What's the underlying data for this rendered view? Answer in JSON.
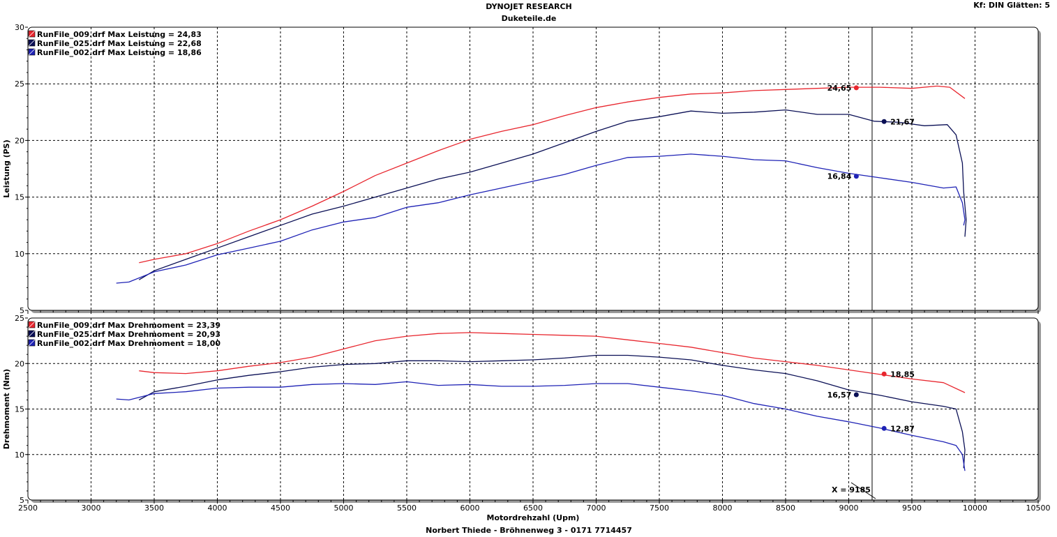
{
  "header": {
    "title": "DYNOJET RESEARCH",
    "subtitle": "Duketeile.de",
    "settings": "Kf: DIN  Glätten: 5"
  },
  "footer": "Norbert Thiede - Bröhnenweg 3 - 0171 7714457",
  "cursor_label": "X = 9185",
  "colors": {
    "run009": "#e8262e",
    "run025": "#0a0f55",
    "run002": "#1e22b5"
  },
  "chart_data": [
    {
      "type": "line",
      "ylabel": "Leistung (PS)",
      "xlabel": "",
      "xlim": [
        2500,
        10500
      ],
      "ylim": [
        5,
        30
      ],
      "x_ticks": [
        2500,
        3000,
        3500,
        4000,
        4500,
        5000,
        5500,
        6000,
        6500,
        7000,
        7500,
        8000,
        8500,
        9000,
        9500,
        10000,
        10500
      ],
      "y_ticks": [
        5,
        10,
        15,
        20,
        25,
        30
      ],
      "cursor_x": 9185,
      "legend": "top-left",
      "series": [
        {
          "name": "RunFile_009.drf Max Leistung = 24,83",
          "color": "#e8262e",
          "marker": {
            "x": 9060,
            "y": 24.65,
            "label": "24,65",
            "side": "left"
          },
          "points": [
            [
              3380,
              9.2
            ],
            [
              3500,
              9.5
            ],
            [
              3750,
              10.0
            ],
            [
              4000,
              10.9
            ],
            [
              4250,
              12.0
            ],
            [
              4500,
              13.0
            ],
            [
              4750,
              14.2
            ],
            [
              5000,
              15.5
            ],
            [
              5250,
              16.9
            ],
            [
              5500,
              18.0
            ],
            [
              5750,
              19.1
            ],
            [
              6000,
              20.1
            ],
            [
              6250,
              20.8
            ],
            [
              6500,
              21.4
            ],
            [
              6750,
              22.2
            ],
            [
              7000,
              22.9
            ],
            [
              7250,
              23.4
            ],
            [
              7500,
              23.8
            ],
            [
              7750,
              24.1
            ],
            [
              8000,
              24.2
            ],
            [
              8250,
              24.4
            ],
            [
              8500,
              24.5
            ],
            [
              8750,
              24.6
            ],
            [
              9000,
              24.7
            ],
            [
              9250,
              24.7
            ],
            [
              9500,
              24.6
            ],
            [
              9700,
              24.8
            ],
            [
              9800,
              24.7
            ],
            [
              9920,
              23.7
            ]
          ]
        },
        {
          "name": "RunFile_025.drf Max Leistung = 22,68",
          "color": "#0a0f55",
          "marker": {
            "x": 9280,
            "y": 21.67,
            "label": "21,67",
            "side": "right"
          },
          "points": [
            [
              3380,
              7.7
            ],
            [
              3500,
              8.5
            ],
            [
              3750,
              9.5
            ],
            [
              4000,
              10.5
            ],
            [
              4250,
              11.5
            ],
            [
              4500,
              12.5
            ],
            [
              4750,
              13.5
            ],
            [
              5000,
              14.2
            ],
            [
              5250,
              15.0
            ],
            [
              5500,
              15.8
            ],
            [
              5750,
              16.6
            ],
            [
              6000,
              17.2
            ],
            [
              6250,
              18.0
            ],
            [
              6500,
              18.8
            ],
            [
              6750,
              19.8
            ],
            [
              7000,
              20.8
            ],
            [
              7250,
              21.7
            ],
            [
              7500,
              22.1
            ],
            [
              7750,
              22.6
            ],
            [
              8000,
              22.4
            ],
            [
              8250,
              22.5
            ],
            [
              8500,
              22.7
            ],
            [
              8750,
              22.3
            ],
            [
              9000,
              22.3
            ],
            [
              9200,
              21.7
            ],
            [
              9400,
              21.6
            ],
            [
              9600,
              21.3
            ],
            [
              9780,
              21.4
            ],
            [
              9850,
              20.5
            ],
            [
              9900,
              18.0
            ],
            [
              9910,
              15.5
            ],
            [
              9930,
              13.0
            ],
            [
              9920,
              11.5
            ]
          ]
        },
        {
          "name": "RunFile_002.drf Max Leistung = 18,86",
          "color": "#1e22b5",
          "marker": {
            "x": 9060,
            "y": 16.84,
            "label": "16,84",
            "side": "left"
          },
          "points": [
            [
              3200,
              7.4
            ],
            [
              3300,
              7.5
            ],
            [
              3500,
              8.4
            ],
            [
              3750,
              9.0
            ],
            [
              4000,
              9.9
            ],
            [
              4250,
              10.5
            ],
            [
              4500,
              11.1
            ],
            [
              4750,
              12.1
            ],
            [
              5000,
              12.8
            ],
            [
              5250,
              13.2
            ],
            [
              5500,
              14.1
            ],
            [
              5750,
              14.5
            ],
            [
              6000,
              15.2
            ],
            [
              6250,
              15.8
            ],
            [
              6500,
              16.4
            ],
            [
              6750,
              17.0
            ],
            [
              7000,
              17.8
            ],
            [
              7250,
              18.5
            ],
            [
              7500,
              18.6
            ],
            [
              7750,
              18.8
            ],
            [
              8000,
              18.6
            ],
            [
              8250,
              18.3
            ],
            [
              8500,
              18.2
            ],
            [
              8750,
              17.6
            ],
            [
              9000,
              17.1
            ],
            [
              9250,
              16.7
            ],
            [
              9500,
              16.3
            ],
            [
              9750,
              15.8
            ],
            [
              9850,
              15.9
            ],
            [
              9900,
              14.5
            ],
            [
              9920,
              13.0
            ],
            [
              9910,
              12.5
            ]
          ]
        }
      ]
    },
    {
      "type": "line",
      "ylabel": "Drehmoment (Nm)",
      "xlabel": "Motordrehzahl (Upm)",
      "xlim": [
        2500,
        10500
      ],
      "ylim": [
        5,
        25
      ],
      "x_ticks": [
        2500,
        3000,
        3500,
        4000,
        4500,
        5000,
        5500,
        6000,
        6500,
        7000,
        7500,
        8000,
        8500,
        9000,
        9500,
        10000,
        10500
      ],
      "y_ticks": [
        5,
        10,
        15,
        20,
        25
      ],
      "cursor_x": 9185,
      "legend": "top-left",
      "series": [
        {
          "name": "RunFile_009.drf Max Drehmoment = 23,39",
          "color": "#e8262e",
          "marker": {
            "x": 9280,
            "y": 18.85,
            "label": "18,85",
            "side": "right"
          },
          "points": [
            [
              3380,
              19.2
            ],
            [
              3500,
              19.0
            ],
            [
              3750,
              18.9
            ],
            [
              4000,
              19.2
            ],
            [
              4250,
              19.7
            ],
            [
              4500,
              20.1
            ],
            [
              4750,
              20.7
            ],
            [
              5000,
              21.6
            ],
            [
              5250,
              22.5
            ],
            [
              5500,
              23.0
            ],
            [
              5750,
              23.3
            ],
            [
              6000,
              23.4
            ],
            [
              6250,
              23.3
            ],
            [
              6500,
              23.2
            ],
            [
              6750,
              23.1
            ],
            [
              7000,
              23.0
            ],
            [
              7250,
              22.6
            ],
            [
              7500,
              22.2
            ],
            [
              7750,
              21.8
            ],
            [
              8000,
              21.2
            ],
            [
              8250,
              20.6
            ],
            [
              8500,
              20.2
            ],
            [
              8750,
              19.8
            ],
            [
              9000,
              19.3
            ],
            [
              9250,
              18.8
            ],
            [
              9500,
              18.3
            ],
            [
              9750,
              17.9
            ],
            [
              9920,
              16.8
            ]
          ]
        },
        {
          "name": "RunFile_025.drf Max Drehmoment = 20,93",
          "color": "#0a0f55",
          "marker": {
            "x": 9060,
            "y": 16.57,
            "label": "16,57",
            "side": "left"
          },
          "points": [
            [
              3380,
              16.0
            ],
            [
              3500,
              16.9
            ],
            [
              3750,
              17.5
            ],
            [
              4000,
              18.2
            ],
            [
              4250,
              18.7
            ],
            [
              4500,
              19.1
            ],
            [
              4750,
              19.6
            ],
            [
              5000,
              19.9
            ],
            [
              5250,
              20.0
            ],
            [
              5500,
              20.3
            ],
            [
              5750,
              20.3
            ],
            [
              6000,
              20.2
            ],
            [
              6250,
              20.3
            ],
            [
              6500,
              20.4
            ],
            [
              6750,
              20.6
            ],
            [
              7000,
              20.9
            ],
            [
              7250,
              20.9
            ],
            [
              7500,
              20.7
            ],
            [
              7750,
              20.4
            ],
            [
              8000,
              19.8
            ],
            [
              8250,
              19.3
            ],
            [
              8500,
              18.9
            ],
            [
              8750,
              18.1
            ],
            [
              9000,
              17.1
            ],
            [
              9250,
              16.5
            ],
            [
              9500,
              15.8
            ],
            [
              9750,
              15.3
            ],
            [
              9850,
              15.0
            ],
            [
              9900,
              12.5
            ],
            [
              9920,
              10.5
            ],
            [
              9910,
              8.5
            ]
          ]
        },
        {
          "name": "RunFile_002.drf Max Drehmoment = 18,00",
          "color": "#1e22b5",
          "marker": {
            "x": 9280,
            "y": 12.87,
            "label": "12,87",
            "side": "right"
          },
          "points": [
            [
              3200,
              16.1
            ],
            [
              3300,
              16.0
            ],
            [
              3500,
              16.7
            ],
            [
              3750,
              16.9
            ],
            [
              4000,
              17.3
            ],
            [
              4250,
              17.4
            ],
            [
              4500,
              17.4
            ],
            [
              4750,
              17.7
            ],
            [
              5000,
              17.8
            ],
            [
              5250,
              17.7
            ],
            [
              5500,
              18.0
            ],
            [
              5750,
              17.6
            ],
            [
              6000,
              17.7
            ],
            [
              6250,
              17.5
            ],
            [
              6500,
              17.5
            ],
            [
              6750,
              17.6
            ],
            [
              7000,
              17.8
            ],
            [
              7250,
              17.8
            ],
            [
              7500,
              17.4
            ],
            [
              7750,
              17.0
            ],
            [
              8000,
              16.5
            ],
            [
              8250,
              15.6
            ],
            [
              8500,
              15.0
            ],
            [
              8750,
              14.2
            ],
            [
              9000,
              13.6
            ],
            [
              9250,
              12.9
            ],
            [
              9500,
              12.1
            ],
            [
              9750,
              11.4
            ],
            [
              9850,
              11.0
            ],
            [
              9900,
              10.0
            ],
            [
              9920,
              8.2
            ]
          ]
        }
      ]
    }
  ]
}
